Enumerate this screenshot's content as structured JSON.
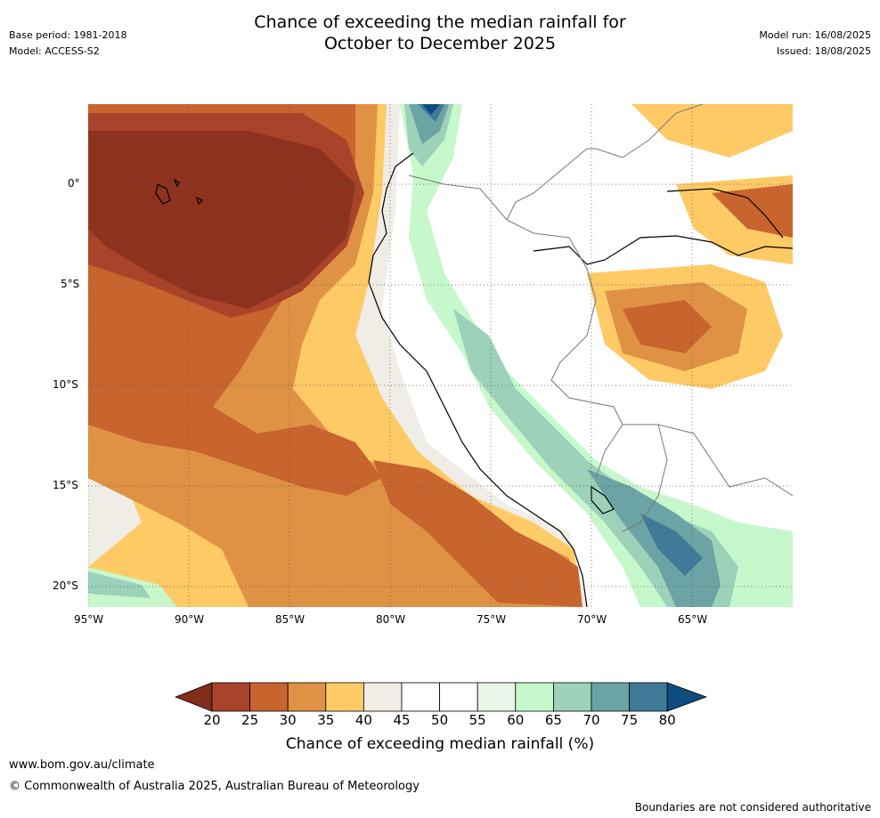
{
  "header": {
    "base_period": "Base period: 1981-2018",
    "model": "Model: ACCESS-S2",
    "title_line1": "Chance of exceeding the median rainfall for",
    "title_line2": "October to December 2025",
    "model_run": "Model run: 16/08/2025",
    "issued": "Issued: 18/08/2025"
  },
  "map": {
    "lat_labels": [
      "0°",
      "5°S",
      "10°S",
      "15°S",
      "20°S"
    ],
    "lon_labels": [
      "95°W",
      "90°W",
      "85°W",
      "80°W",
      "75°W",
      "70°W",
      "65°W"
    ],
    "lat_values": [
      0,
      -5,
      -10,
      -15,
      -20
    ],
    "lon_values": [
      -95,
      -90,
      -85,
      -80,
      -75,
      -70,
      -65
    ],
    "extent": {
      "lon_min": -95,
      "lon_max": -60,
      "lat_min": -21,
      "lat_max": 4
    }
  },
  "colorbar": {
    "label": "Chance of exceeding median rainfall (%)",
    "ticks": [
      "20",
      "25",
      "30",
      "35",
      "40",
      "45",
      "50",
      "55",
      "60",
      "65",
      "70",
      "75",
      "80"
    ],
    "colors": [
      "#7f2e1a",
      "#a9432a",
      "#c8642e",
      "#df9244",
      "#fdca66",
      "#f0ece6",
      "#ffffff",
      "#ffffff",
      "#e8f6ea",
      "#c7f8cb",
      "#9dd1ba",
      "#6ca3a4",
      "#3f7a98",
      "#0f4c80"
    ]
  },
  "footer": {
    "website": "www.bom.gov.au/climate",
    "copyright": "© Commonwealth of Australia 2025, Australian Bureau of Meteorology",
    "disclaimer": "Boundaries are not considered authoritative"
  }
}
